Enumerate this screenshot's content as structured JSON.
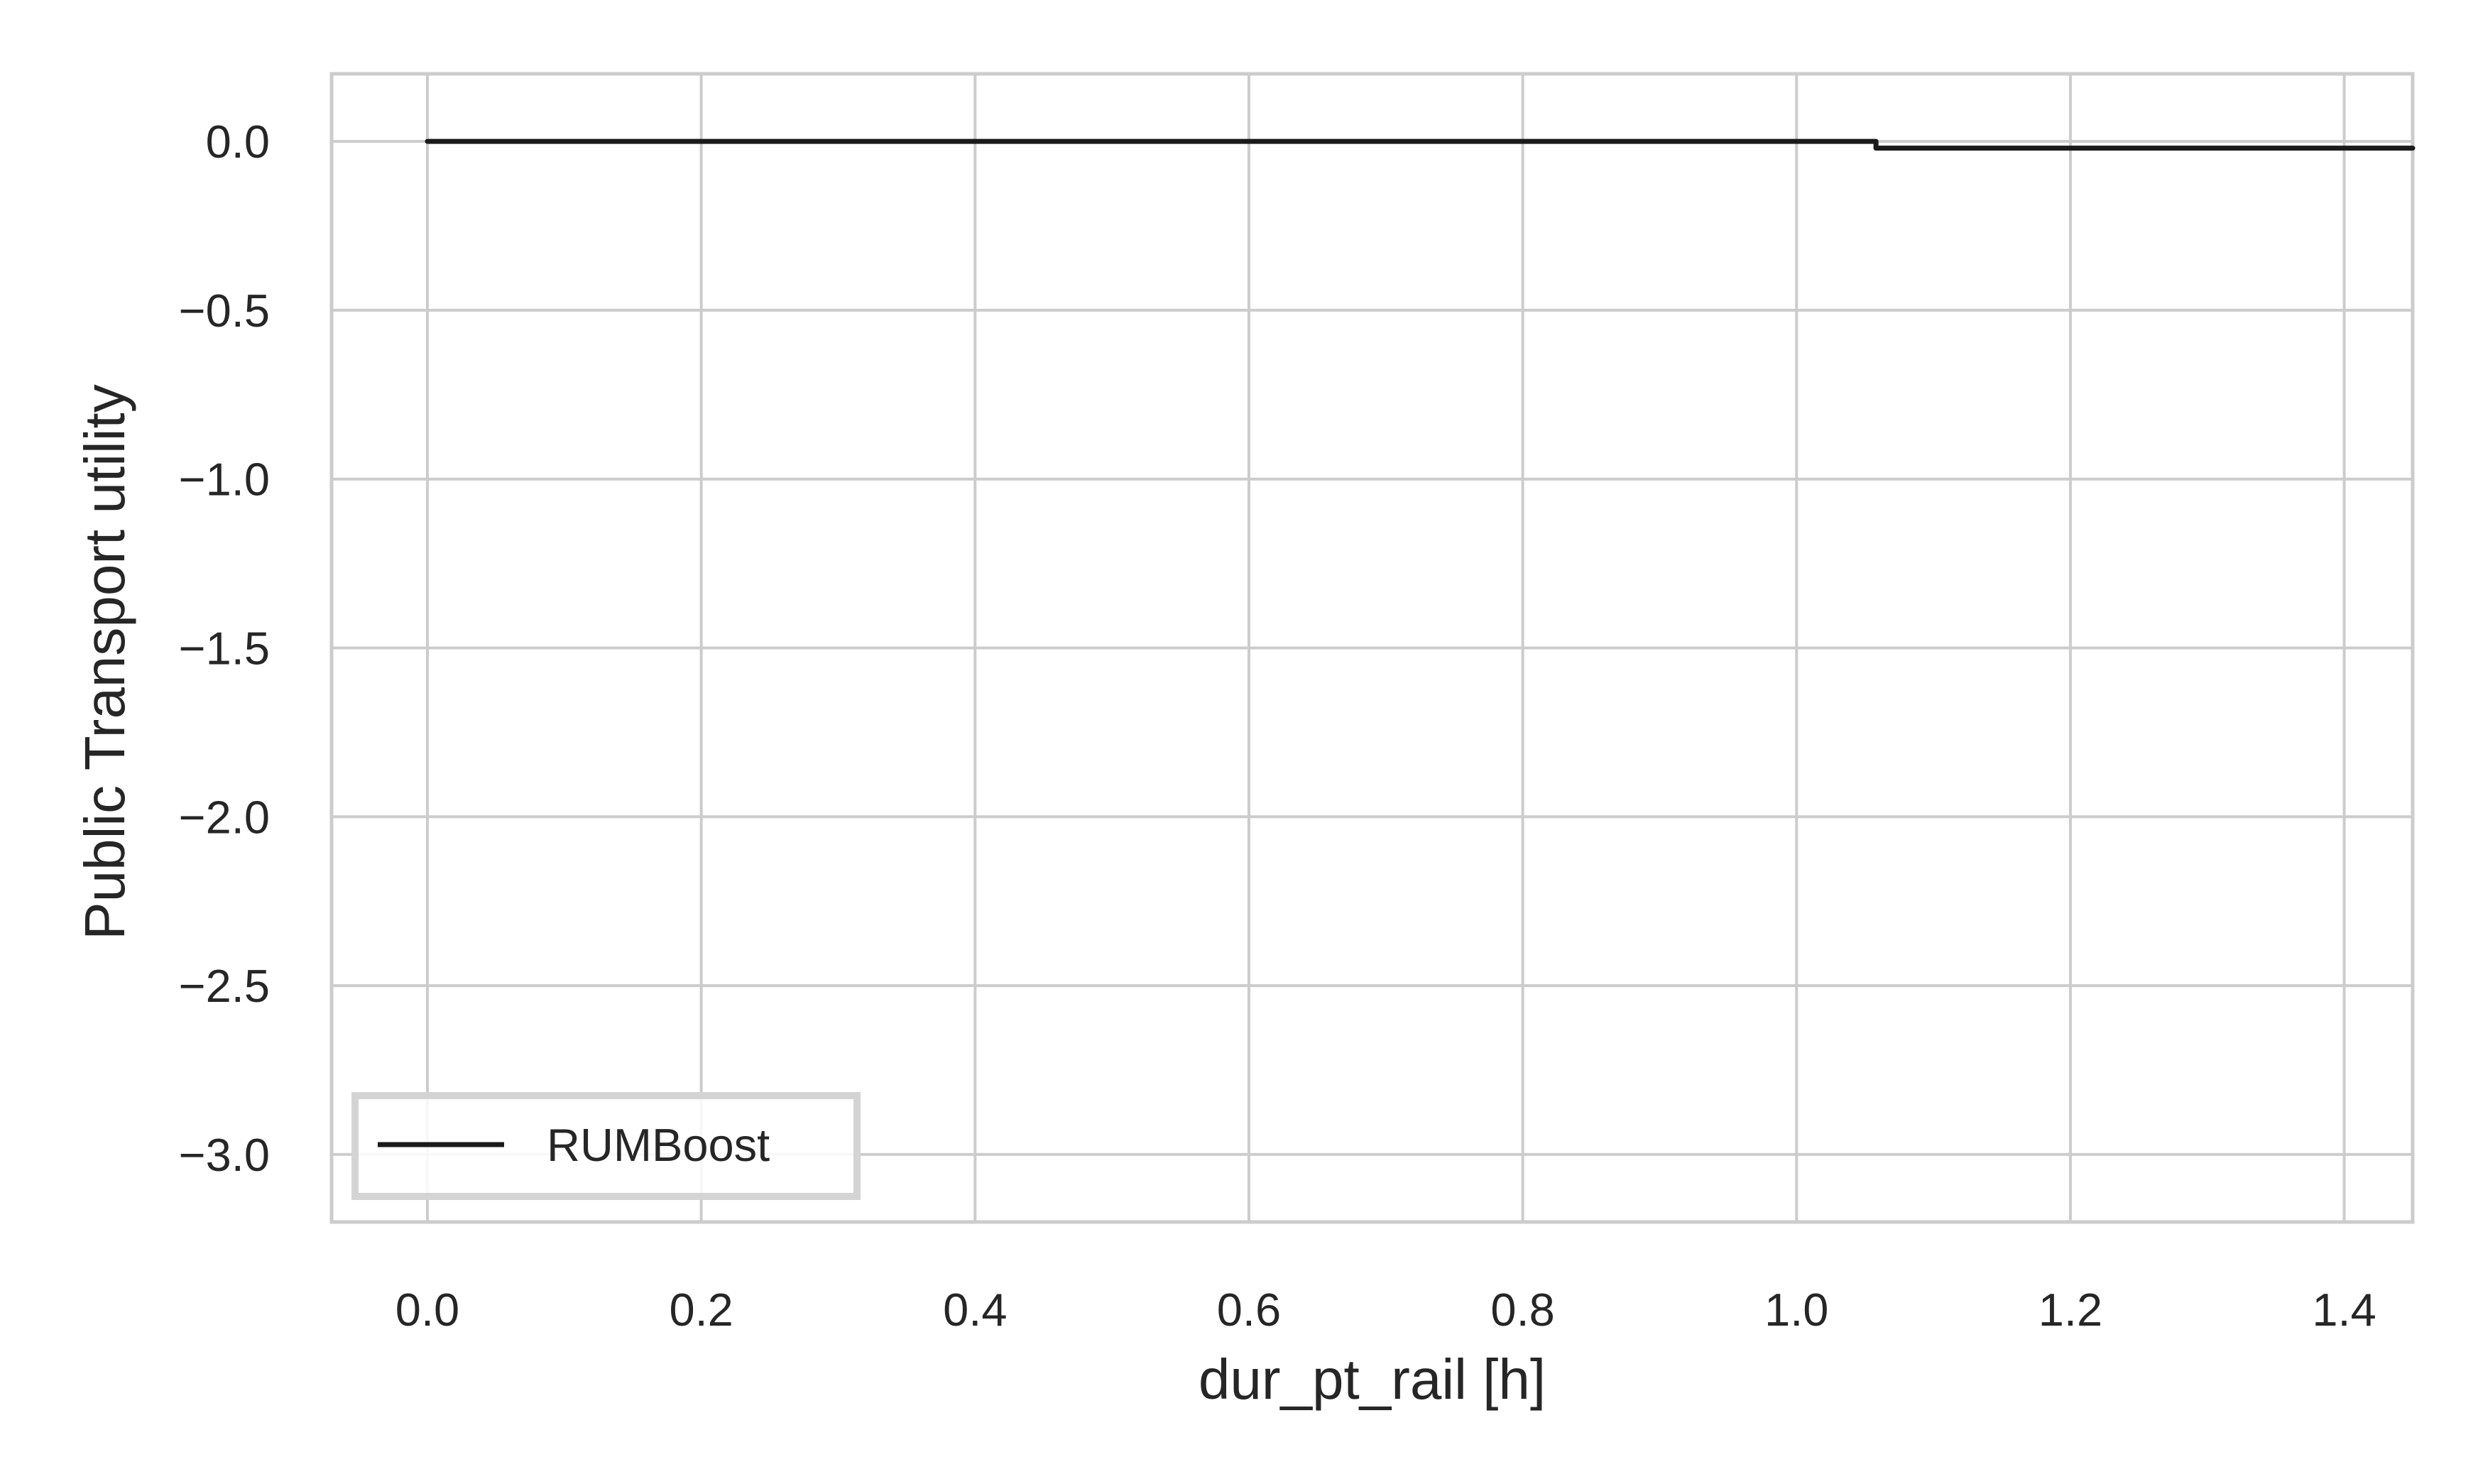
{
  "chart_data": {
    "type": "line",
    "title": "",
    "xlabel": "dur_pt_rail [h]",
    "ylabel": "Public Transport utility",
    "xlim": [
      -0.07,
      1.45
    ],
    "ylim": [
      -3.2,
      0.2
    ],
    "x_ticks": [
      0.0,
      0.2,
      0.4,
      0.6,
      0.8,
      1.0,
      1.2,
      1.4
    ],
    "x_tick_labels": [
      "0.0",
      "0.2",
      "0.4",
      "0.6",
      "0.8",
      "1.0",
      "1.2",
      "1.4"
    ],
    "y_ticks": [
      0.0,
      -0.5,
      -1.0,
      -1.5,
      -2.0,
      -2.5,
      -3.0
    ],
    "y_tick_labels": [
      "0.0",
      "−0.5",
      "−1.0",
      "−1.5",
      "−2.0",
      "−2.5",
      "−3.0"
    ],
    "grid": true,
    "legend_position": "lower-left",
    "series": [
      {
        "name": "RUMBoost",
        "color": "#1a1a1a",
        "x": [
          0.0,
          1.058,
          1.058,
          1.45
        ],
        "y": [
          0.0,
          0.0,
          -0.02,
          -0.02
        ]
      }
    ],
    "colors": {
      "grid": "#cccccc",
      "spine": "#cccccc",
      "text": "#262626",
      "legend_border": "#d4d4d4"
    }
  }
}
